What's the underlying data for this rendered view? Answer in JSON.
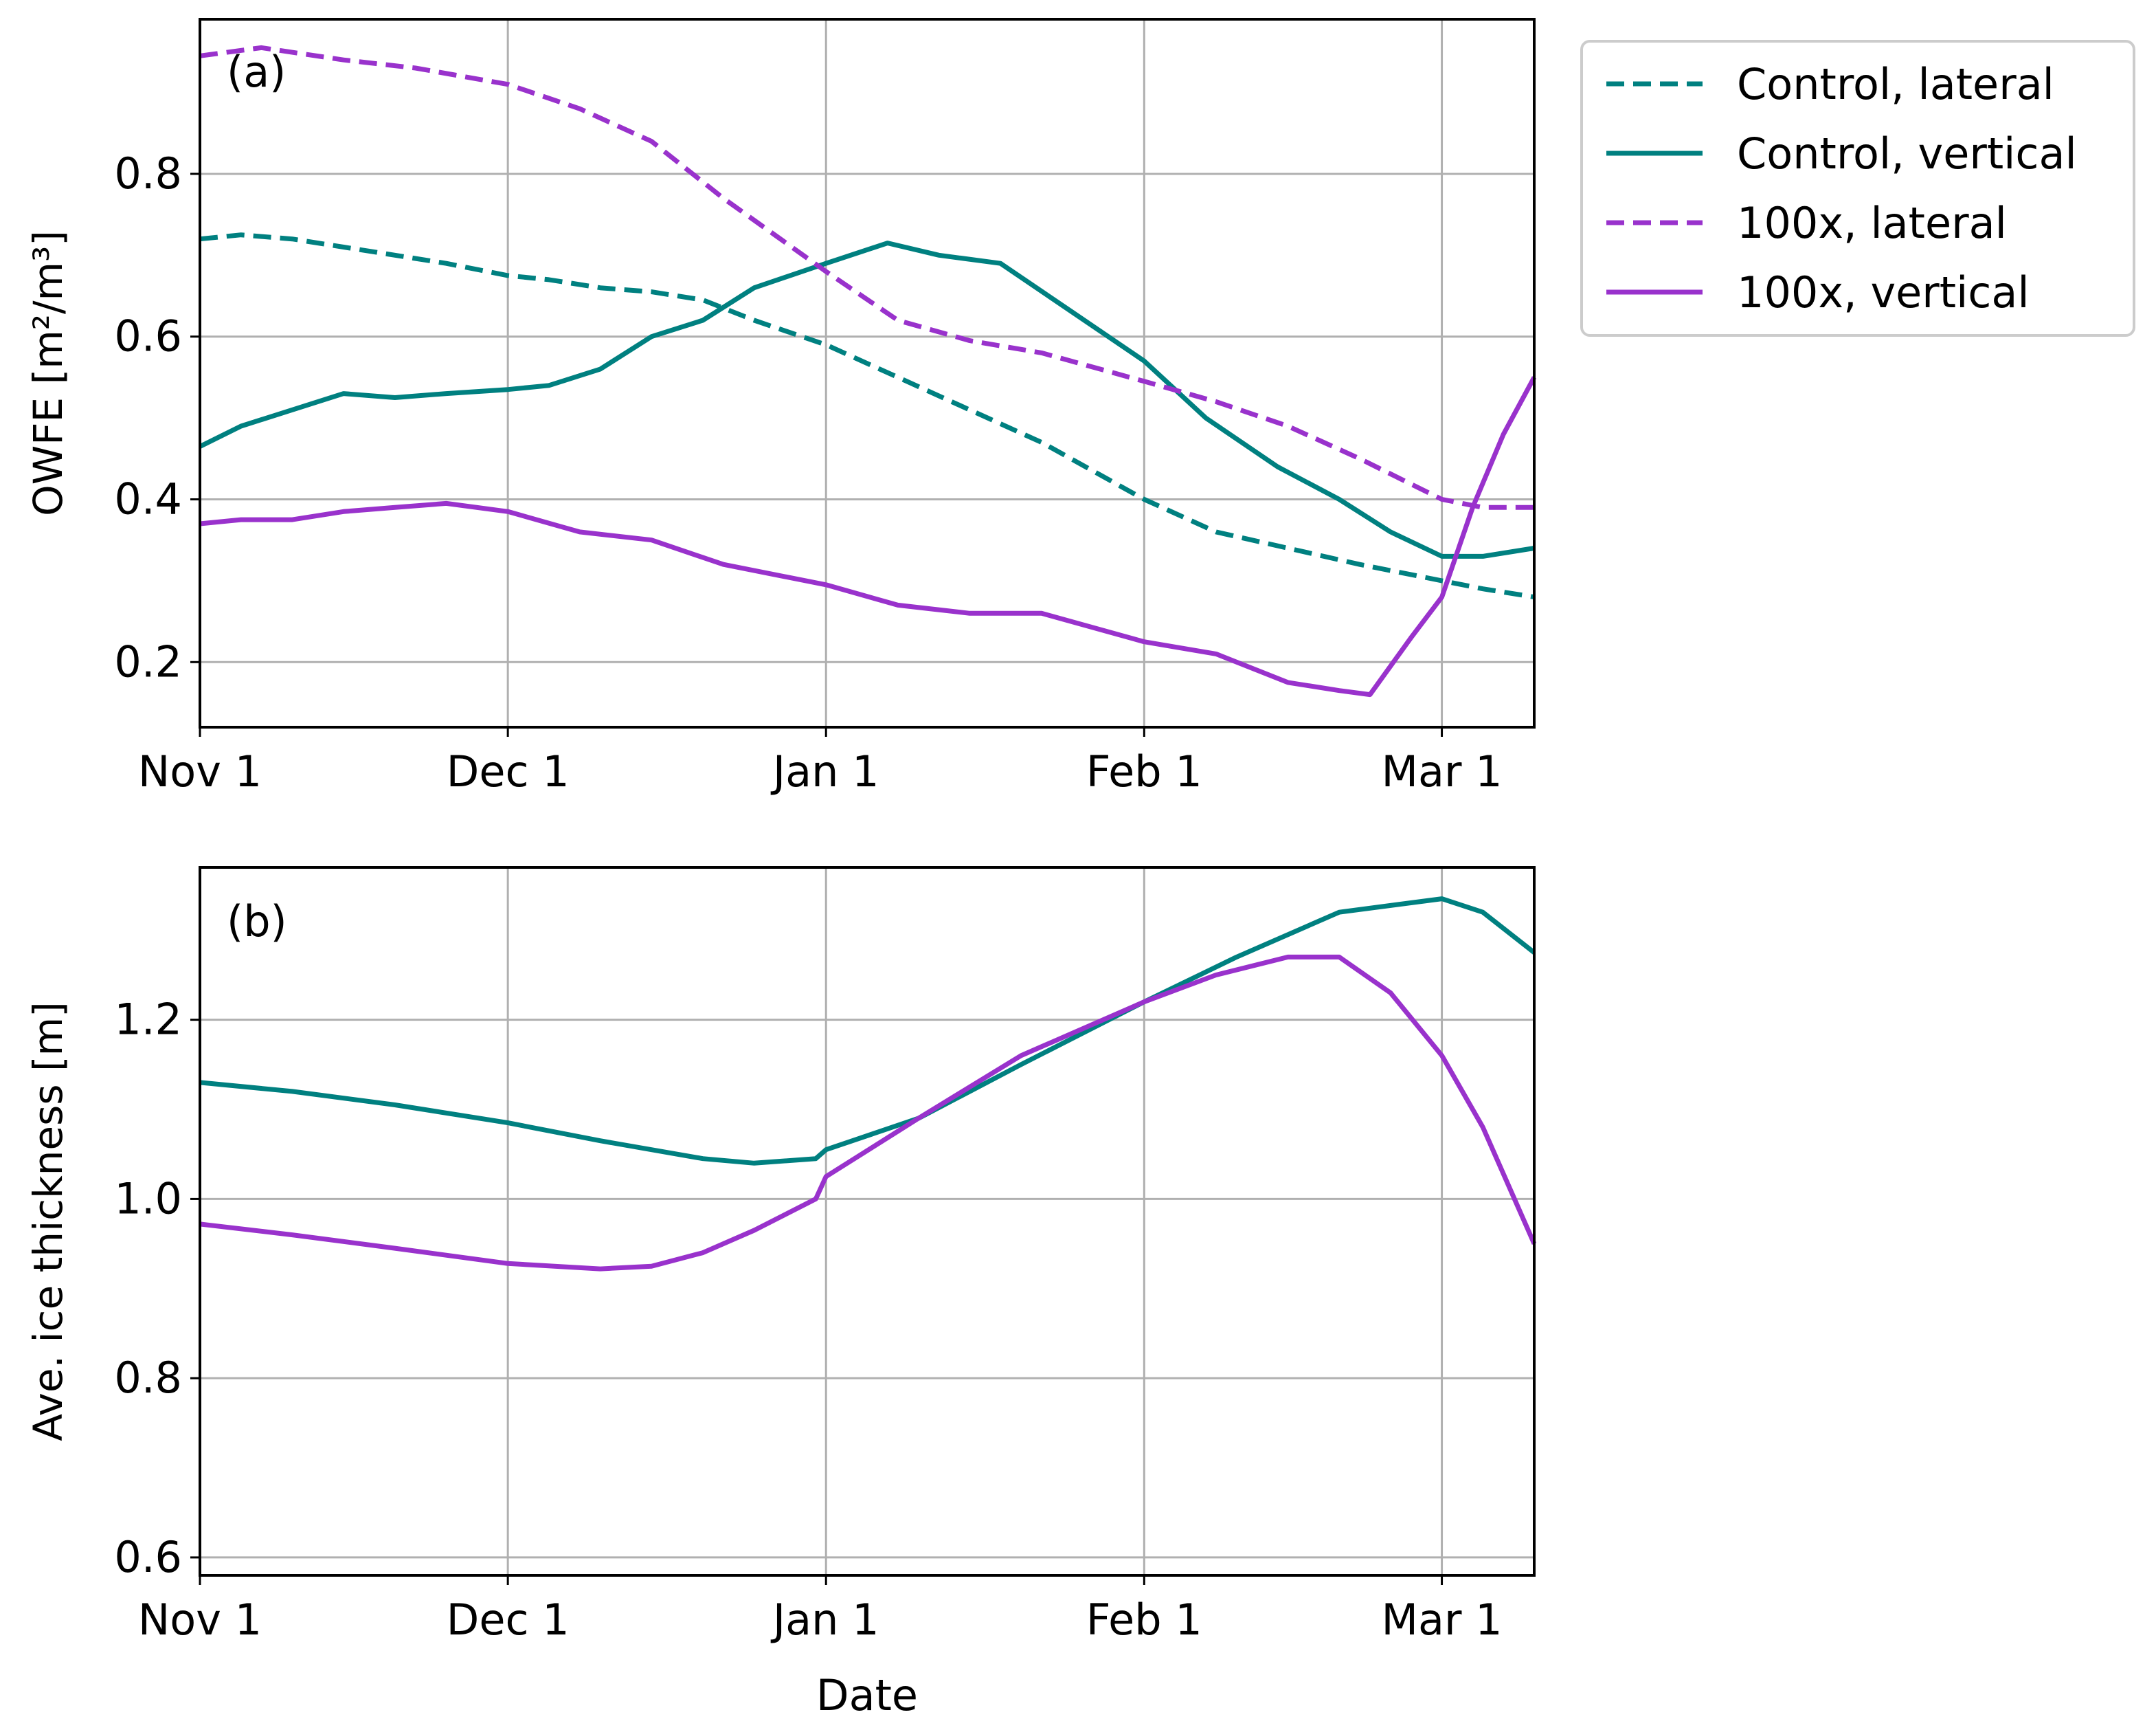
{
  "x_ticks": [
    "Nov 1",
    "Dec 1",
    "Jan 1",
    "Feb 1",
    "Mar 1"
  ],
  "x_tick_dates": [
    "2019-11-01",
    "2019-12-01",
    "2020-01-01",
    "2020-02-01",
    "2020-03-01"
  ],
  "colors": {
    "control": "#008080",
    "x100": "#9932CC",
    "grid": "#b0b0b0"
  },
  "legend": {
    "placement": "outside-upper-right",
    "entries": [
      {
        "label": "Control, lateral",
        "color": "#008080",
        "style": "dashed"
      },
      {
        "label": "Control, vertical",
        "color": "#008080",
        "style": "solid"
      },
      {
        "label": "100x, lateral",
        "color": "#9932CC",
        "style": "dashed"
      },
      {
        "label": "100x, vertical",
        "color": "#9932CC",
        "style": "solid"
      }
    ]
  },
  "chart_data": [
    {
      "type": "line",
      "panel_label": "(a)",
      "xlabel": "",
      "ylabel": "OWFE [m²/m³]",
      "xlim": [
        "2019-11-01",
        "2020-03-10"
      ],
      "ylim": [
        0.12,
        0.99
      ],
      "y_ticks": [
        0.2,
        0.4,
        0.6,
        0.8
      ],
      "grid": true,
      "series": [
        {
          "name": "Control, lateral",
          "color": "#008080",
          "style": "dashed",
          "x": [
            "2019-11-01",
            "2019-11-05",
            "2019-11-10",
            "2019-11-15",
            "2019-11-20",
            "2019-11-25",
            "2019-12-01",
            "2019-12-05",
            "2019-12-10",
            "2019-12-15",
            "2019-12-20",
            "2019-12-25",
            "2020-01-01",
            "2020-01-08",
            "2020-01-15",
            "2020-01-22",
            "2020-02-01",
            "2020-02-08",
            "2020-02-15",
            "2020-02-22",
            "2020-03-01",
            "2020-03-05",
            "2020-03-10"
          ],
          "y": [
            0.72,
            0.725,
            0.72,
            0.71,
            0.7,
            0.69,
            0.675,
            0.67,
            0.66,
            0.655,
            0.645,
            0.62,
            0.59,
            0.55,
            0.51,
            0.47,
            0.4,
            0.36,
            0.34,
            0.32,
            0.3,
            0.29,
            0.28
          ]
        },
        {
          "name": "Control, vertical",
          "color": "#008080",
          "style": "solid",
          "x": [
            "2019-11-01",
            "2019-11-05",
            "2019-11-10",
            "2019-11-15",
            "2019-11-20",
            "2019-11-25",
            "2019-12-01",
            "2019-12-05",
            "2019-12-10",
            "2019-12-15",
            "2019-12-20",
            "2019-12-25",
            "2020-01-01",
            "2020-01-07",
            "2020-01-12",
            "2020-01-18",
            "2020-01-25",
            "2020-02-01",
            "2020-02-07",
            "2020-02-14",
            "2020-02-20",
            "2020-02-25",
            "2020-03-01",
            "2020-03-05",
            "2020-03-10"
          ],
          "y": [
            0.465,
            0.49,
            0.51,
            0.53,
            0.525,
            0.53,
            0.535,
            0.54,
            0.56,
            0.6,
            0.62,
            0.66,
            0.69,
            0.715,
            0.7,
            0.69,
            0.63,
            0.57,
            0.5,
            0.44,
            0.4,
            0.36,
            0.33,
            0.33,
            0.34
          ]
        },
        {
          "name": "100x, lateral",
          "color": "#9932CC",
          "style": "dashed",
          "x": [
            "2019-11-01",
            "2019-11-07",
            "2019-11-15",
            "2019-11-22",
            "2019-12-01",
            "2019-12-08",
            "2019-12-15",
            "2019-12-22",
            "2020-01-01",
            "2020-01-08",
            "2020-01-15",
            "2020-01-22",
            "2020-02-01",
            "2020-02-08",
            "2020-02-15",
            "2020-02-22",
            "2020-03-01",
            "2020-03-05",
            "2020-03-10"
          ],
          "y": [
            0.945,
            0.955,
            0.94,
            0.93,
            0.91,
            0.88,
            0.84,
            0.77,
            0.68,
            0.62,
            0.595,
            0.58,
            0.545,
            0.52,
            0.49,
            0.45,
            0.4,
            0.39,
            0.39
          ]
        },
        {
          "name": "100x, vertical",
          "color": "#9932CC",
          "style": "solid",
          "x": [
            "2019-11-01",
            "2019-11-05",
            "2019-11-10",
            "2019-11-15",
            "2019-11-20",
            "2019-11-25",
            "2019-12-01",
            "2019-12-08",
            "2019-12-15",
            "2019-12-22",
            "2020-01-01",
            "2020-01-08",
            "2020-01-15",
            "2020-01-22",
            "2020-02-01",
            "2020-02-08",
            "2020-02-15",
            "2020-02-20",
            "2020-02-23",
            "2020-02-27",
            "2020-03-01",
            "2020-03-04",
            "2020-03-07",
            "2020-03-10"
          ],
          "y": [
            0.37,
            0.375,
            0.375,
            0.385,
            0.39,
            0.395,
            0.385,
            0.36,
            0.35,
            0.32,
            0.295,
            0.27,
            0.26,
            0.26,
            0.225,
            0.21,
            0.175,
            0.165,
            0.16,
            0.23,
            0.28,
            0.39,
            0.48,
            0.55
          ]
        }
      ]
    },
    {
      "type": "line",
      "panel_label": "(b)",
      "xlabel": "Date",
      "ylabel": "Ave. ice thickness [m]",
      "xlim": [
        "2019-11-01",
        "2020-03-10"
      ],
      "ylim": [
        0.58,
        1.37
      ],
      "y_ticks": [
        0.6,
        0.8,
        1.0,
        1.2
      ],
      "grid": true,
      "series": [
        {
          "name": "Control",
          "color": "#008080",
          "style": "solid",
          "x": [
            "2019-11-01",
            "2019-11-10",
            "2019-11-20",
            "2019-12-01",
            "2019-12-10",
            "2019-12-20",
            "2019-12-25",
            "2019-12-31",
            "2020-01-01",
            "2020-01-10",
            "2020-01-20",
            "2020-02-01",
            "2020-02-10",
            "2020-02-20",
            "2020-03-01",
            "2020-03-05",
            "2020-03-10"
          ],
          "y": [
            1.13,
            1.12,
            1.105,
            1.085,
            1.065,
            1.045,
            1.04,
            1.045,
            1.055,
            1.09,
            1.15,
            1.22,
            1.27,
            1.32,
            1.335,
            1.32,
            1.275
          ]
        },
        {
          "name": "100x",
          "color": "#9932CC",
          "style": "solid",
          "x": [
            "2019-11-01",
            "2019-11-10",
            "2019-11-20",
            "2019-12-01",
            "2019-12-10",
            "2019-12-15",
            "2019-12-20",
            "2019-12-25",
            "2019-12-31",
            "2020-01-01",
            "2020-01-10",
            "2020-01-20",
            "2020-02-01",
            "2020-02-08",
            "2020-02-15",
            "2020-02-20",
            "2020-02-25",
            "2020-03-01",
            "2020-03-05",
            "2020-03-10"
          ],
          "y": [
            0.972,
            0.96,
            0.945,
            0.928,
            0.922,
            0.925,
            0.94,
            0.965,
            1.0,
            1.025,
            1.09,
            1.16,
            1.22,
            1.25,
            1.27,
            1.27,
            1.23,
            1.16,
            1.08,
            0.95
          ]
        }
      ]
    }
  ]
}
